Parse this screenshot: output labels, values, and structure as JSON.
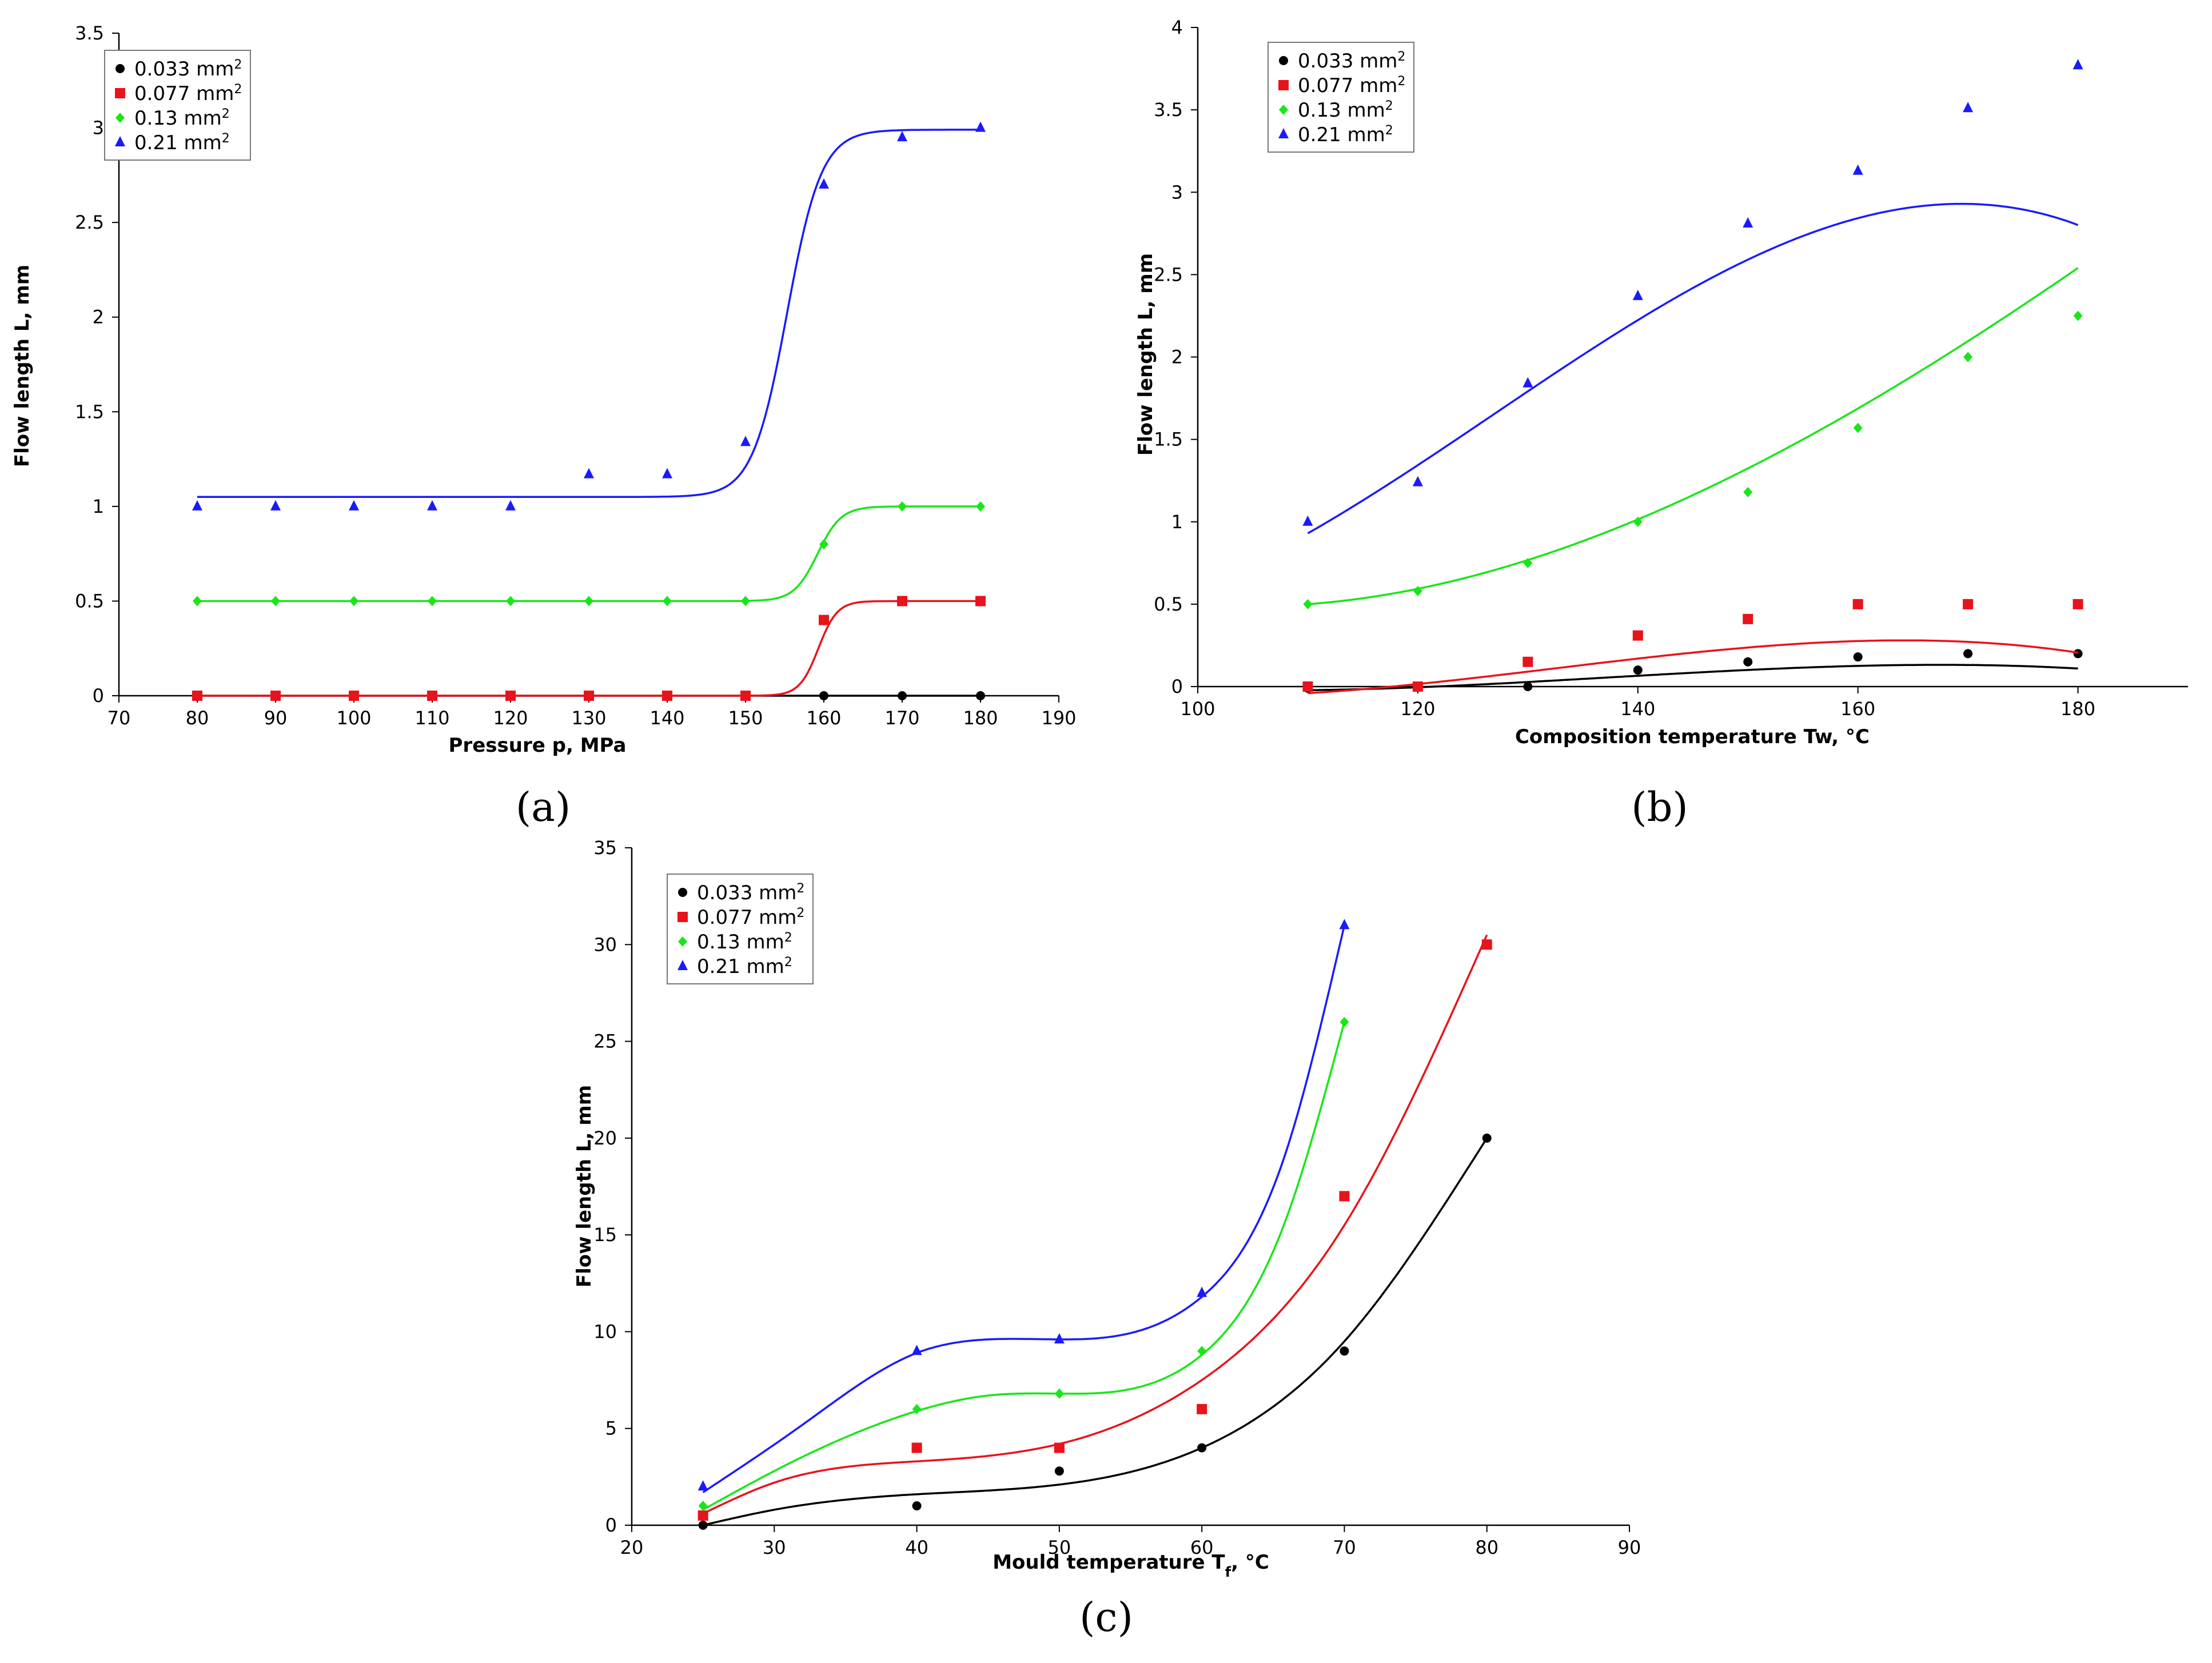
{
  "chart_data": [
    {
      "type": "scatter",
      "panel_label": "(a)",
      "title": "",
      "xlabel": "Pressure p, MPa",
      "ylabel": "Flow length L, mm",
      "xlim": [
        70,
        190
      ],
      "ylim": [
        0,
        3.5
      ],
      "xticks": [
        "70",
        "80",
        "90",
        "100",
        "110",
        "120",
        "130",
        "140",
        "150",
        "160",
        "170",
        "180",
        "190"
      ],
      "yticks": [
        "0",
        "0.5",
        "1",
        "1.5",
        "2",
        "2.5",
        "3",
        "3.5"
      ],
      "legend": {
        "position": "top-left"
      },
      "series": [
        {
          "name": "0.033 mm",
          "sup": "2",
          "marker": "circle",
          "color": "#000000",
          "x": [
            80,
            90,
            100,
            110,
            120,
            130,
            140,
            150,
            160,
            170,
            180
          ],
          "values": [
            0,
            0,
            0,
            0,
            0,
            0,
            0,
            0,
            0,
            0,
            0
          ],
          "fit": {
            "kind": "sigmoid",
            "base": 0,
            "amp": 0,
            "center": 160,
            "width": 2
          }
        },
        {
          "name": "0.077 mm",
          "sup": "2",
          "marker": "square",
          "color": "#e8131b",
          "x": [
            80,
            90,
            100,
            110,
            120,
            130,
            140,
            150,
            160,
            170,
            180
          ],
          "values": [
            0,
            0,
            0,
            0,
            0,
            0,
            0,
            0,
            0.4,
            0.5,
            0.5
          ],
          "fit": {
            "kind": "sigmoid",
            "base": 0,
            "amp": 0.5,
            "center": 159.3,
            "width": 1.2
          }
        },
        {
          "name": "0.13 mm",
          "sup": "2",
          "marker": "diamond",
          "color": "#19e619",
          "x": [
            80,
            90,
            100,
            110,
            120,
            130,
            140,
            150,
            160,
            170,
            180
          ],
          "values": [
            0.5,
            0.5,
            0.5,
            0.5,
            0.5,
            0.5,
            0.5,
            0.5,
            0.8,
            1,
            1
          ],
          "fit": {
            "kind": "sigmoid",
            "base": 0.5,
            "amp": 0.5,
            "center": 159.2,
            "width": 1.5
          }
        },
        {
          "name": "0.21 mm",
          "sup": "2",
          "marker": "triangle",
          "color": "#1a1aff",
          "x": [
            80,
            90,
            100,
            110,
            120,
            130,
            140,
            150,
            160,
            170,
            180
          ],
          "values": [
            1,
            1,
            1,
            1,
            1,
            1.17,
            1.17,
            1.34,
            2.7,
            2.95,
            3
          ],
          "fit": {
            "kind": "sigmoid",
            "base": 1.05,
            "amp": 1.94,
            "center": 155.3,
            "width": 2.2
          }
        }
      ]
    },
    {
      "type": "scatter",
      "panel_label": "(b)",
      "title": "",
      "xlabel": "Composition temperature Tw,  °C",
      "ylabel": "Flow length L, mm",
      "xlim": [
        100,
        190
      ],
      "ylim": [
        0,
        4
      ],
      "xticks": [
        "100",
        "120",
        "140",
        "160",
        "180"
      ],
      "xtick_values": [
        100,
        120,
        140,
        160,
        180
      ],
      "yticks": [
        "0",
        "0.5",
        "1",
        "1.5",
        "2",
        "2.5",
        "3",
        "3.5",
        "4"
      ],
      "legend": {
        "position": "top-left"
      },
      "series": [
        {
          "name": "0.033 mm",
          "sup": "2",
          "marker": "circle",
          "color": "#000000",
          "x": [
            110,
            120,
            130,
            140,
            150,
            160,
            170,
            180
          ],
          "values": [
            -0.01,
            0,
            0,
            0.1,
            0.15,
            0.18,
            0.2,
            0.2
          ],
          "fit": {
            "kind": "poly",
            "x0": 110,
            "coef": [
              -0.022,
              0.0008,
              0.000112,
              -1.38e-06
            ]
          }
        },
        {
          "name": "0.077 mm",
          "sup": "2",
          "marker": "square",
          "color": "#e8131b",
          "x": [
            110,
            120,
            130,
            140,
            150,
            160,
            170,
            180
          ],
          "values": [
            0,
            0,
            0.15,
            0.31,
            0.41,
            0.5,
            0.5,
            0.5
          ],
          "fit": {
            "kind": "poly",
            "x0": 110,
            "coef": [
              -0.04,
              0.004,
              0.00018,
              -2.67e-06
            ]
          }
        },
        {
          "name": "0.13 mm",
          "sup": "2",
          "marker": "diamond",
          "color": "#19e619",
          "x": [
            110,
            120,
            130,
            140,
            150,
            160,
            170,
            180
          ],
          "values": [
            0.5,
            0.58,
            0.75,
            1,
            1.18,
            1.57,
            2,
            2.25
          ],
          "fit": {
            "kind": "poly",
            "x0": 110,
            "coef": [
              0.5,
              0.005,
              0.00045,
              -1.5e-06
            ]
          }
        },
        {
          "name": "0.21 mm",
          "sup": "2",
          "marker": "triangle",
          "color": "#1a1aff",
          "x": [
            110,
            120,
            130,
            140,
            150,
            160,
            170,
            180
          ],
          "values": [
            1,
            1.24,
            1.84,
            2.37,
            2.81,
            3.13,
            3.51,
            3.77
          ],
          "fit": {
            "kind": "poly",
            "x0": 110,
            "coef": [
              0.93,
              0.038,
              0.00042,
              -8.3e-06
            ]
          }
        }
      ]
    },
    {
      "type": "scatter",
      "panel_label": "(c)",
      "title": "",
      "xlabel": "Mould temperature T",
      "xlabel_sub": "f",
      "xlabel_unit": ", °C",
      "ylabel": "Flow length L, mm",
      "xlim": [
        20,
        90
      ],
      "ylim": [
        0,
        35
      ],
      "xticks": [
        "20",
        "30",
        "40",
        "50",
        "60",
        "70",
        "80",
        "90"
      ],
      "yticks": [
        "0",
        "5",
        "10",
        "15",
        "20",
        "25",
        "30",
        "35"
      ],
      "legend": {
        "position": "top-left"
      },
      "series": [
        {
          "name": "0.033 mm",
          "sup": "2",
          "marker": "circle",
          "color": "#000000",
          "x": [
            25,
            40,
            50,
            60,
            70,
            80
          ],
          "values": [
            0,
            1,
            2.8,
            4,
            9,
            20
          ],
          "fit": {
            "kind": "spline",
            "x": [
              25,
              30,
              40,
              50,
              60,
              70,
              80
            ],
            "y": [
              0,
              0.8,
              1.6,
              2.1,
              4,
              9.5,
              20
            ]
          }
        },
        {
          "name": "0.077 mm",
          "sup": "2",
          "marker": "square",
          "color": "#e8131b",
          "x": [
            25,
            40,
            50,
            60,
            70,
            80
          ],
          "values": [
            0.5,
            4,
            4,
            6,
            17,
            30
          ],
          "fit": {
            "kind": "spline",
            "x": [
              25,
              30,
              40,
              50,
              60,
              70,
              80
            ],
            "y": [
              0.6,
              2.2,
              3.3,
              4.2,
              7.5,
              15.5,
              30.5
            ]
          }
        },
        {
          "name": "0.13 mm",
          "sup": "2",
          "marker": "diamond",
          "color": "#19e619",
          "x": [
            25,
            40,
            50,
            60,
            70
          ],
          "values": [
            1,
            6,
            6.8,
            9,
            26
          ],
          "fit": {
            "kind": "spline",
            "x": [
              25,
              30,
              40,
              45,
              50,
              60,
              66,
              70
            ],
            "y": [
              0.8,
              2.8,
              5.9,
              6.7,
              6.8,
              8.8,
              16,
              26
            ]
          }
        },
        {
          "name": "0.21 mm",
          "sup": "2",
          "marker": "triangle",
          "color": "#1a1aff",
          "x": [
            25,
            40,
            50,
            60,
            70
          ],
          "values": [
            2,
            9,
            9.6,
            12,
            31
          ],
          "fit": {
            "kind": "spline",
            "x": [
              25,
              32,
              40,
              45,
              50,
              60,
              66,
              70
            ],
            "y": [
              1.7,
              5.2,
              8.9,
              9.6,
              9.6,
              11.8,
              19.5,
              31
            ]
          }
        }
      ]
    }
  ]
}
